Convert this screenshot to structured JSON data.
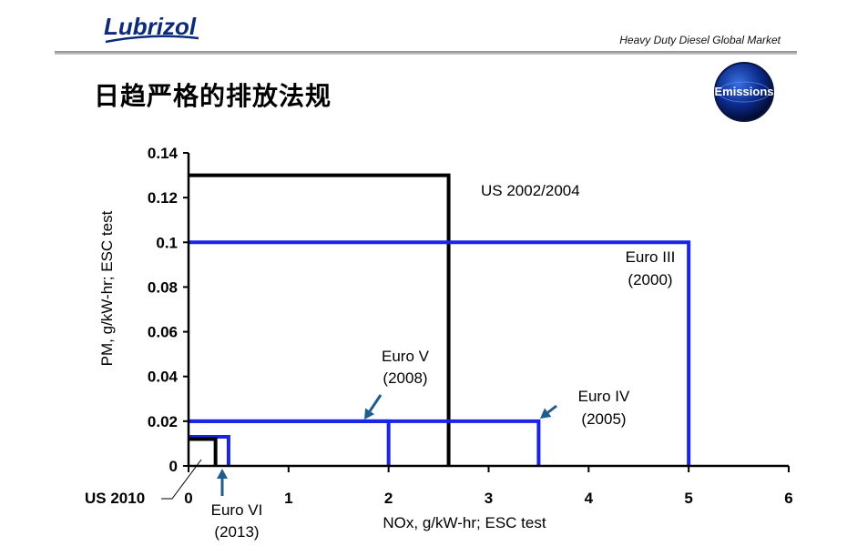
{
  "header": {
    "logo_text": "Lubrizol",
    "market_text": "Heavy Duty Diesel Global Market",
    "title": "日趋严格的排放法规",
    "badge_text": "Emissions"
  },
  "colors": {
    "us_standard": "#000000",
    "euro_standard": "#1a24e6",
    "arrow": "#1f5d8c",
    "logo_blue": "#0b2a7a"
  },
  "chart_data": {
    "type": "line",
    "title": "",
    "xlabel": "NOx, g/kW-hr;  ESC test",
    "ylabel": "PM,  g/kW-hr;  ESC test",
    "xlim": [
      0,
      6
    ],
    "ylim": [
      0,
      0.14
    ],
    "x_ticks": [
      0,
      1,
      2,
      3,
      4,
      5,
      6
    ],
    "y_ticks": [
      0,
      0.02,
      0.04,
      0.06,
      0.08,
      0.1,
      0.12,
      0.14
    ],
    "x_tick_labels": [
      "0",
      "1",
      "2",
      "3",
      "4",
      "5",
      "6"
    ],
    "y_tick_labels": [
      "0",
      "0.02",
      "0.04",
      "0.06",
      "0.08",
      "0.1",
      "0.12",
      "0.14"
    ],
    "grid": false,
    "series": [
      {
        "name": "US 2002/2004",
        "color": "us",
        "nox": 2.6,
        "pm": 0.13
      },
      {
        "name": "Euro III (2000)",
        "color": "euro",
        "nox": 5.0,
        "pm": 0.1
      },
      {
        "name": "Euro IV (2005)",
        "color": "euro",
        "nox": 3.5,
        "pm": 0.02
      },
      {
        "name": "Euro V (2008)",
        "color": "euro",
        "nox": 2.0,
        "pm": 0.02
      },
      {
        "name": "Euro VI (2013)",
        "color": "euro",
        "nox": 0.4,
        "pm": 0.013
      },
      {
        "name": "US 2010",
        "color": "us",
        "nox": 0.27,
        "pm": 0.012
      }
    ],
    "annotations": {
      "us2002": "US 2002/2004",
      "euro3_line1": "Euro III",
      "euro3_line2": "(2000)",
      "euro4_line1": "Euro IV",
      "euro4_line2": "(2005)",
      "euro5_line1": "Euro V",
      "euro5_line2": "(2008)",
      "euro6_line1": "Euro VI",
      "euro6_line2": "(2013)",
      "us2010": "US 2010"
    }
  }
}
